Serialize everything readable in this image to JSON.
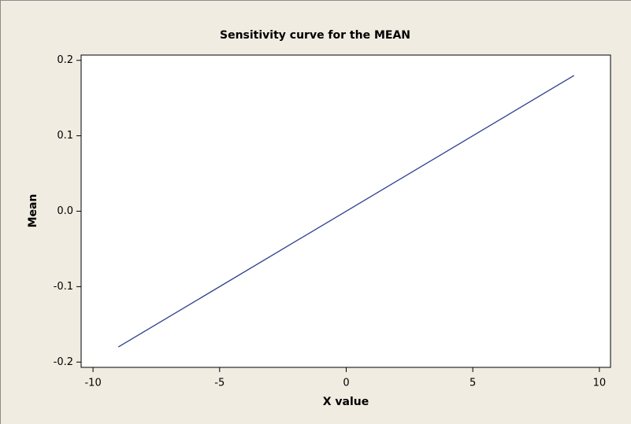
{
  "chart_data": {
    "type": "line",
    "title": "Sensitivity curve for the MEAN",
    "x_label": "X value",
    "y_label": "Mean",
    "x": [
      -9,
      9
    ],
    "series": [
      {
        "name": "Mean",
        "color": "#2e3f8f",
        "values": [
          -0.18,
          0.18
        ]
      }
    ],
    "xlim": [
      -10.47,
      10.44
    ],
    "xticks": [
      -10,
      -5,
      0,
      5,
      10
    ],
    "ylim": [
      -0.207,
      0.207
    ],
    "yticks": [
      -0.2,
      -0.1,
      {
        "value": 0,
        "label": "0.0"
      },
      0.1,
      0.2
    ],
    "grid": false
  }
}
